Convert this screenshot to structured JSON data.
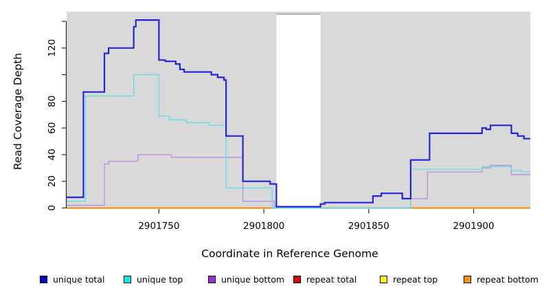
{
  "chart_data": {
    "type": "line",
    "subtype": "step-coverage",
    "title": "",
    "xlabel": "Coordinate in Reference Genome",
    "ylabel": "Read Coverage Depth",
    "xlim": [
      2901706,
      2901927
    ],
    "x_end": 2901927,
    "ylim": [
      0,
      147
    ],
    "x_ticks": [
      2901750,
      2901800,
      2901850,
      2901900
    ],
    "y_ticks": [
      0,
      20,
      40,
      60,
      80,
      100,
      120,
      140
    ],
    "y_ticks_labeled": [
      0,
      20,
      40,
      60,
      80,
      120
    ],
    "grid": "off",
    "legend_position": "bottom",
    "plot_background": "#d9d9d9",
    "axis_color": "#2a2a2a",
    "gap_band": {
      "from": 2901806,
      "to": 2901827,
      "color": "#ffffff",
      "top_line_color": "#9a9a9a"
    },
    "zero_line_overlay": {
      "from": 2901805,
      "to": 2901870,
      "y": 0,
      "color": "#97cfa2"
    },
    "series": [
      {
        "name": "repeat total",
        "color": "#dd0000",
        "width": 1.4,
        "points": [
          [
            2901706,
            0
          ]
        ]
      },
      {
        "name": "repeat top",
        "color": "#eeee00",
        "width": 1.4,
        "points": [
          [
            2901706,
            0
          ]
        ]
      },
      {
        "name": "repeat bottom",
        "color": "#ff8c00",
        "width": 1.7,
        "points": [
          [
            2901706,
            0
          ]
        ]
      },
      {
        "name": "unique bottom",
        "color": "#b98fdc",
        "width": 1.4,
        "points": [
          [
            2901706,
            2
          ],
          [
            2901724,
            33
          ],
          [
            2901726,
            35
          ],
          [
            2901740,
            40
          ],
          [
            2901756,
            38
          ],
          [
            2901790,
            5
          ],
          [
            2901805,
            0
          ],
          [
            2901870,
            7
          ],
          [
            2901878,
            27
          ],
          [
            2901904,
            30
          ],
          [
            2901908,
            32
          ],
          [
            2901918,
            25
          ]
        ]
      },
      {
        "name": "unique top",
        "color": "#63dfe3",
        "width": 1.4,
        "points": [
          [
            2901706,
            5
          ],
          [
            2901715,
            84
          ],
          [
            2901738,
            100
          ],
          [
            2901750,
            69
          ],
          [
            2901755,
            66
          ],
          [
            2901763,
            64
          ],
          [
            2901774,
            62
          ],
          [
            2901782,
            15
          ],
          [
            2901804,
            0
          ],
          [
            2901870,
            29
          ],
          [
            2901904,
            31
          ],
          [
            2901918,
            28
          ],
          [
            2901923,
            27
          ]
        ]
      },
      {
        "name": "unique total",
        "color": "#2323dd",
        "width": 2.2,
        "points": [
          [
            2901706,
            8
          ],
          [
            2901714,
            87
          ],
          [
            2901724,
            116
          ],
          [
            2901726,
            120
          ],
          [
            2901738,
            136
          ],
          [
            2901739,
            141
          ],
          [
            2901750,
            111
          ],
          [
            2901753,
            110
          ],
          [
            2901758,
            108
          ],
          [
            2901760,
            104
          ],
          [
            2901762,
            102
          ],
          [
            2901775,
            100
          ],
          [
            2901778,
            98
          ],
          [
            2901781,
            96
          ],
          [
            2901782,
            54
          ],
          [
            2901790,
            20
          ],
          [
            2901803,
            18
          ],
          [
            2901806,
            1
          ],
          [
            2901827,
            3
          ],
          [
            2901829,
            4
          ],
          [
            2901852,
            9
          ],
          [
            2901856,
            11
          ],
          [
            2901866,
            7
          ],
          [
            2901870,
            36
          ],
          [
            2901879,
            56
          ],
          [
            2901904,
            60
          ],
          [
            2901906,
            59
          ],
          [
            2901908,
            62
          ],
          [
            2901918,
            56
          ],
          [
            2901921,
            54
          ],
          [
            2901924,
            52
          ]
        ]
      }
    ],
    "legend": [
      {
        "label": "unique total",
        "color": "#0000d0"
      },
      {
        "label": "unique top",
        "color": "#00eeee"
      },
      {
        "label": "unique bottom",
        "color": "#9932cc"
      },
      {
        "label": "repeat total",
        "color": "#dd0000"
      },
      {
        "label": "repeat top",
        "color": "#ffff00"
      },
      {
        "label": "repeat bottom",
        "color": "#ff9500"
      }
    ]
  }
}
